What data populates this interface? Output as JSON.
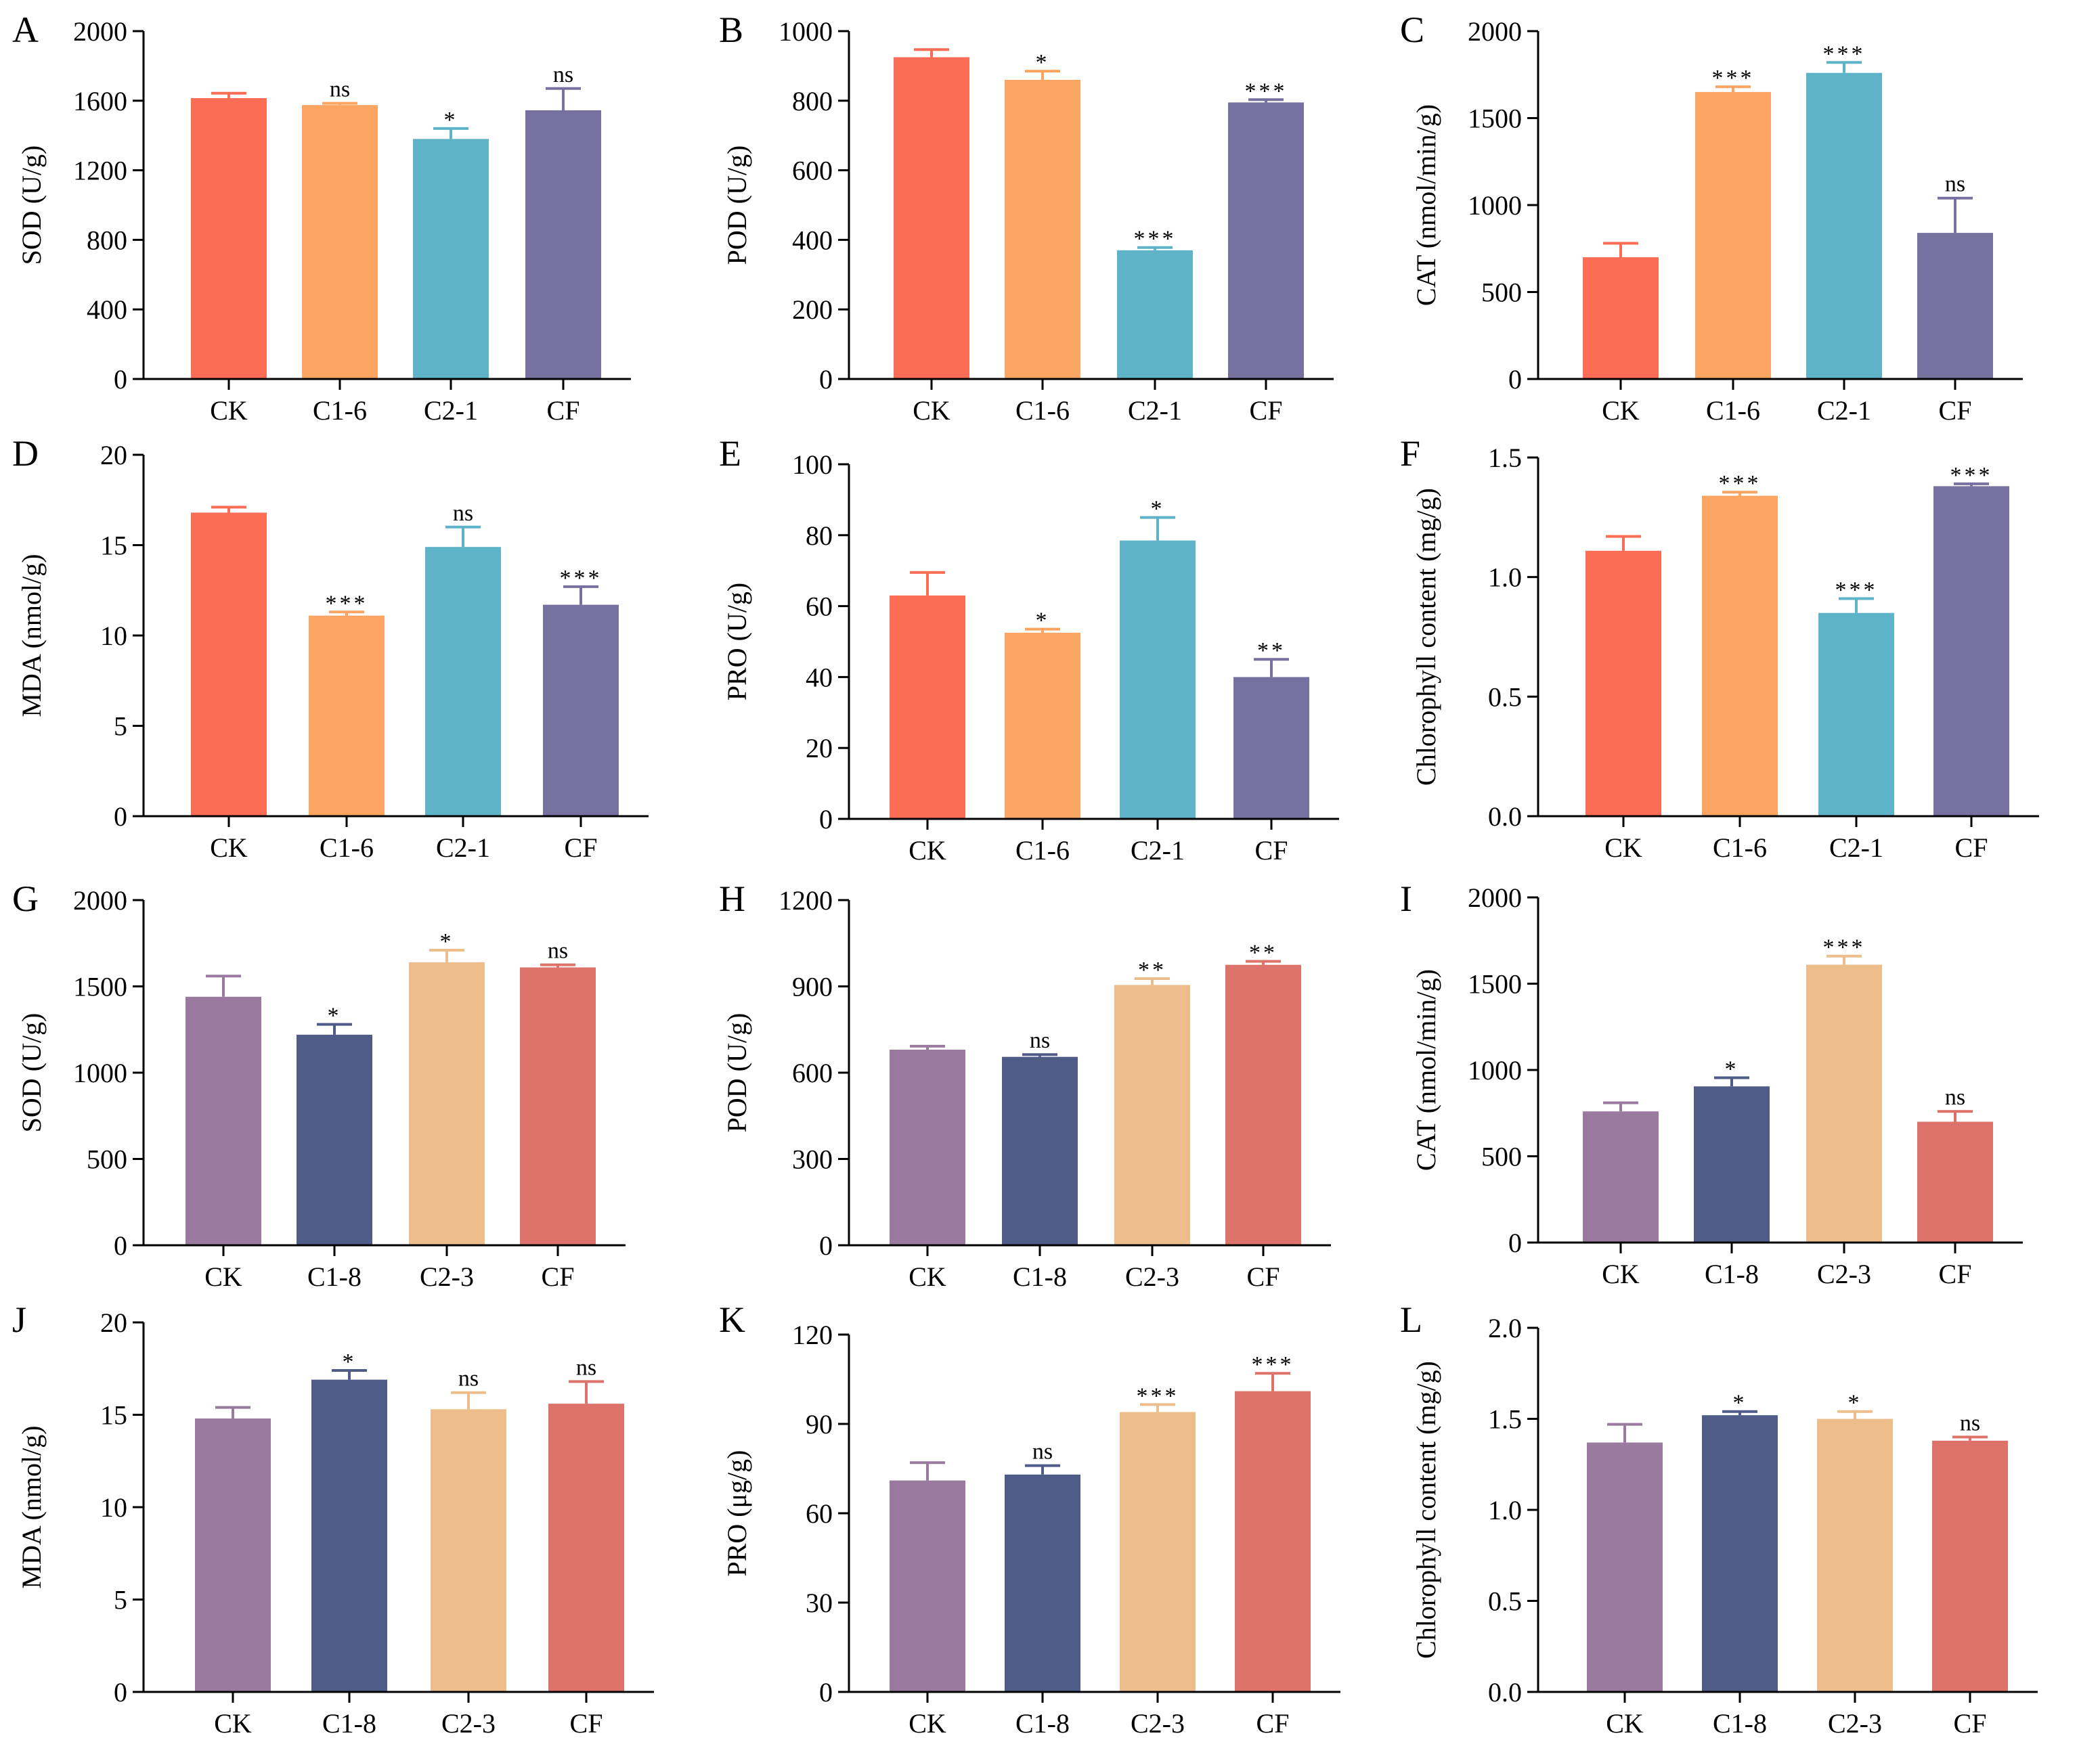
{
  "palettes": {
    "top": [
      "#fc6d55",
      "#fca461",
      "#5eb3c8",
      "#77719f"
    ],
    "bottom": [
      "#9b7aa0",
      "#505c88",
      "#edbe8c",
      "#dc726a"
    ]
  },
  "chart_data": [
    {
      "type": "bar",
      "panel": "A",
      "ylabel": "SOD (U/g)",
      "categories": [
        "CK",
        "C1-6",
        "C2-1",
        "CF"
      ],
      "values": [
        1615,
        1575,
        1380,
        1545
      ],
      "errors": [
        28,
        10,
        60,
        125
      ],
      "sig": [
        "",
        "ns",
        "*",
        "ns"
      ],
      "ylim": [
        0,
        2000
      ],
      "yticks": [
        "0",
        "400",
        "800",
        "1200",
        "1600",
        "2000"
      ],
      "palette": "top"
    },
    {
      "type": "bar",
      "panel": "B",
      "ylabel": "POD (U/g)",
      "categories": [
        "CK",
        "C1-6",
        "C2-1",
        "CF"
      ],
      "values": [
        925,
        860,
        370,
        795
      ],
      "errors": [
        22,
        25,
        8,
        8
      ],
      "sig": [
        "",
        "*",
        "***",
        "***"
      ],
      "ylim": [
        0,
        1000
      ],
      "yticks": [
        "0",
        "200",
        "400",
        "600",
        "800",
        "1000"
      ],
      "palette": "top"
    },
    {
      "type": "bar",
      "panel": "C",
      "ylabel": "CAT (nmol/min/g)",
      "categories": [
        "CK",
        "C1-6",
        "C2-1",
        "CF"
      ],
      "values": [
        700,
        1650,
        1760,
        840
      ],
      "errors": [
        80,
        30,
        60,
        200
      ],
      "sig": [
        "",
        "***",
        "***",
        "ns"
      ],
      "ylim": [
        0,
        2000
      ],
      "yticks": [
        "0",
        "500",
        "1000",
        "1500",
        "2000"
      ],
      "palette": "top"
    },
    {
      "type": "bar",
      "panel": "D",
      "ylabel": "MDA (nmol/g)",
      "categories": [
        "CK",
        "C1-6",
        "C2-1",
        "CF"
      ],
      "values": [
        16.8,
        11.1,
        14.9,
        11.7
      ],
      "errors": [
        0.3,
        0.2,
        1.1,
        1.0
      ],
      "sig": [
        "",
        "***",
        "ns",
        "***"
      ],
      "ylim": [
        0,
        20
      ],
      "yticks": [
        "0",
        "5",
        "10",
        "15",
        "20"
      ],
      "palette": "top"
    },
    {
      "type": "bar",
      "panel": "E",
      "ylabel": "PRO (U/g)",
      "categories": [
        "CK",
        "C1-6",
        "C2-1",
        "CF"
      ],
      "values": [
        63,
        52.5,
        78.5,
        40
      ],
      "errors": [
        6.5,
        1.0,
        6.5,
        5.0
      ],
      "sig": [
        "",
        "*",
        "*",
        "**"
      ],
      "ylim": [
        0,
        100
      ],
      "yticks": [
        "0",
        "20",
        "40",
        "60",
        "80",
        "100"
      ],
      "palette": "top"
    },
    {
      "type": "bar",
      "panel": "F",
      "ylabel": "Chlorophyll content (mg/g)",
      "categories": [
        "CK",
        "C1-6",
        "C2-1",
        "CF"
      ],
      "values": [
        1.11,
        1.34,
        0.85,
        1.38
      ],
      "errors": [
        0.06,
        0.015,
        0.06,
        0.01
      ],
      "sig": [
        "",
        "***",
        "***",
        "***"
      ],
      "ylim": [
        0,
        1.5
      ],
      "yticks": [
        "0.0",
        "0.5",
        "1.0",
        "1.5"
      ],
      "palette": "top"
    },
    {
      "type": "bar",
      "panel": "G",
      "ylabel": "SOD (U/g)",
      "categories": [
        "CK",
        "C1-8",
        "C2-3",
        "CF"
      ],
      "values": [
        1440,
        1220,
        1640,
        1610
      ],
      "errors": [
        120,
        60,
        70,
        15
      ],
      "sig": [
        "",
        "*",
        "*",
        "ns"
      ],
      "ylim": [
        0,
        2000
      ],
      "yticks": [
        "0",
        "500",
        "1000",
        "1500",
        "2000"
      ],
      "palette": "bottom"
    },
    {
      "type": "bar",
      "panel": "H",
      "ylabel": "POD (U/g)",
      "categories": [
        "CK",
        "C1-8",
        "C2-3",
        "CF"
      ],
      "values": [
        680,
        655,
        905,
        975
      ],
      "errors": [
        12,
        8,
        22,
        12
      ],
      "sig": [
        "",
        "ns",
        "**",
        "**"
      ],
      "ylim": [
        0,
        1200
      ],
      "yticks": [
        "0",
        "300",
        "600",
        "900",
        "1200"
      ],
      "palette": "bottom"
    },
    {
      "type": "bar",
      "panel": "I",
      "ylabel": "CAT (nmol/min/g)",
      "categories": [
        "CK",
        "C1-8",
        "C2-3",
        "CF"
      ],
      "values": [
        760,
        905,
        1610,
        700
      ],
      "errors": [
        50,
        50,
        50,
        60
      ],
      "sig": [
        "",
        "*",
        "***",
        "ns"
      ],
      "ylim": [
        0,
        2000
      ],
      "yticks": [
        "0",
        "500",
        "1000",
        "1500",
        "2000"
      ],
      "palette": "bottom"
    },
    {
      "type": "bar",
      "panel": "J",
      "ylabel": "MDA (nmol/g)",
      "categories": [
        "CK",
        "C1-8",
        "C2-3",
        "CF"
      ],
      "values": [
        14.8,
        16.9,
        15.3,
        15.6
      ],
      "errors": [
        0.6,
        0.5,
        0.9,
        1.2
      ],
      "sig": [
        "",
        "*",
        "ns",
        "ns"
      ],
      "ylim": [
        0,
        20
      ],
      "yticks": [
        "0",
        "5",
        "10",
        "15",
        "20"
      ],
      "palette": "bottom"
    },
    {
      "type": "bar",
      "panel": "K",
      "ylabel": "PRO (μg/g)",
      "categories": [
        "CK",
        "C1-8",
        "C2-3",
        "CF"
      ],
      "values": [
        71,
        73,
        94,
        101
      ],
      "errors": [
        6,
        3,
        2.5,
        6
      ],
      "sig": [
        "",
        "ns",
        "***",
        "***"
      ],
      "ylim": [
        0,
        120
      ],
      "yticks": [
        "0",
        "30",
        "60",
        "90",
        "120"
      ],
      "palette": "bottom"
    },
    {
      "type": "bar",
      "panel": "L",
      "ylabel": "Chlorophyll content (mg/g)",
      "categories": [
        "CK",
        "C1-8",
        "C2-3",
        "CF"
      ],
      "values": [
        1.37,
        1.52,
        1.5,
        1.38
      ],
      "errors": [
        0.1,
        0.02,
        0.04,
        0.02
      ],
      "sig": [
        "",
        "*",
        "*",
        "ns"
      ],
      "ylim": [
        0,
        2.0
      ],
      "yticks": [
        "0.0",
        "0.5",
        "1.0",
        "1.5",
        "2.0"
      ],
      "palette": "bottom"
    }
  ]
}
